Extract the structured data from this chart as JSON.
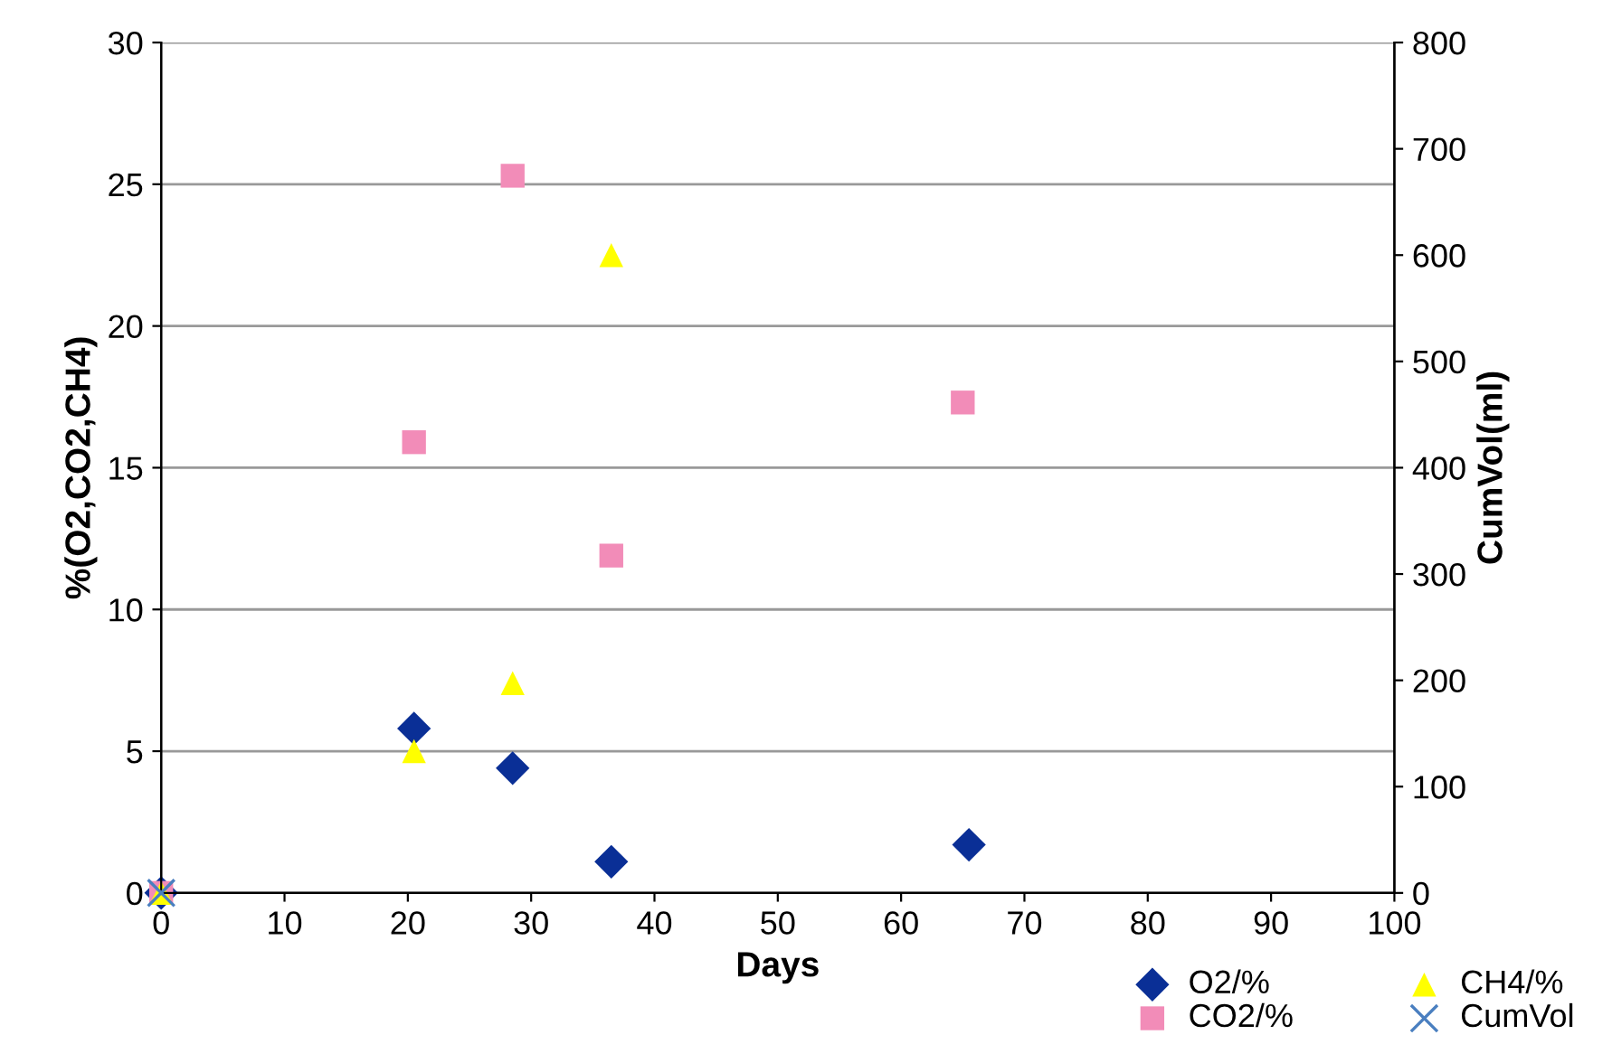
{
  "chart_data": {
    "type": "scatter",
    "xlabel": "Days",
    "ylabel": "%(O2,CO2,CH4)",
    "y2label": "CumVol(ml)",
    "xlim": [
      0,
      100
    ],
    "xticks": [
      0,
      10,
      20,
      30,
      40,
      50,
      60,
      70,
      80,
      90,
      100
    ],
    "ylim": [
      0,
      30
    ],
    "yticks": [
      0,
      5,
      10,
      15,
      20,
      25,
      30
    ],
    "y2lim": [
      0,
      800
    ],
    "y2ticks": [
      0,
      100,
      200,
      300,
      400,
      500,
      600,
      700,
      800
    ],
    "grid": "y",
    "legend": "bottom right",
    "series": [
      {
        "name": "O2/%",
        "color": "#0a2f96",
        "marker": "diamond",
        "x": [
          0,
          20.5,
          28.5,
          36.5,
          65.5
        ],
        "values": [
          0,
          5.8,
          4.4,
          1.1,
          1.7
        ]
      },
      {
        "name": "CO2/%",
        "color": "#f28cb8",
        "marker": "square",
        "x": [
          0,
          20.5,
          28.5,
          36.5,
          65
        ],
        "values": [
          0,
          15.9,
          25.3,
          11.9,
          17.3
        ]
      },
      {
        "name": "CH4/%",
        "color": "#ffff00",
        "marker": "triangle",
        "x": [
          0,
          20.5,
          28.5,
          36.5
        ],
        "values": [
          0,
          5,
          7.4,
          22.5
        ]
      },
      {
        "name": "CumVol",
        "color": "#4a7fc0",
        "marker": "cross",
        "axis": "y2",
        "x": [
          0
        ],
        "values": [
          0
        ]
      }
    ]
  }
}
